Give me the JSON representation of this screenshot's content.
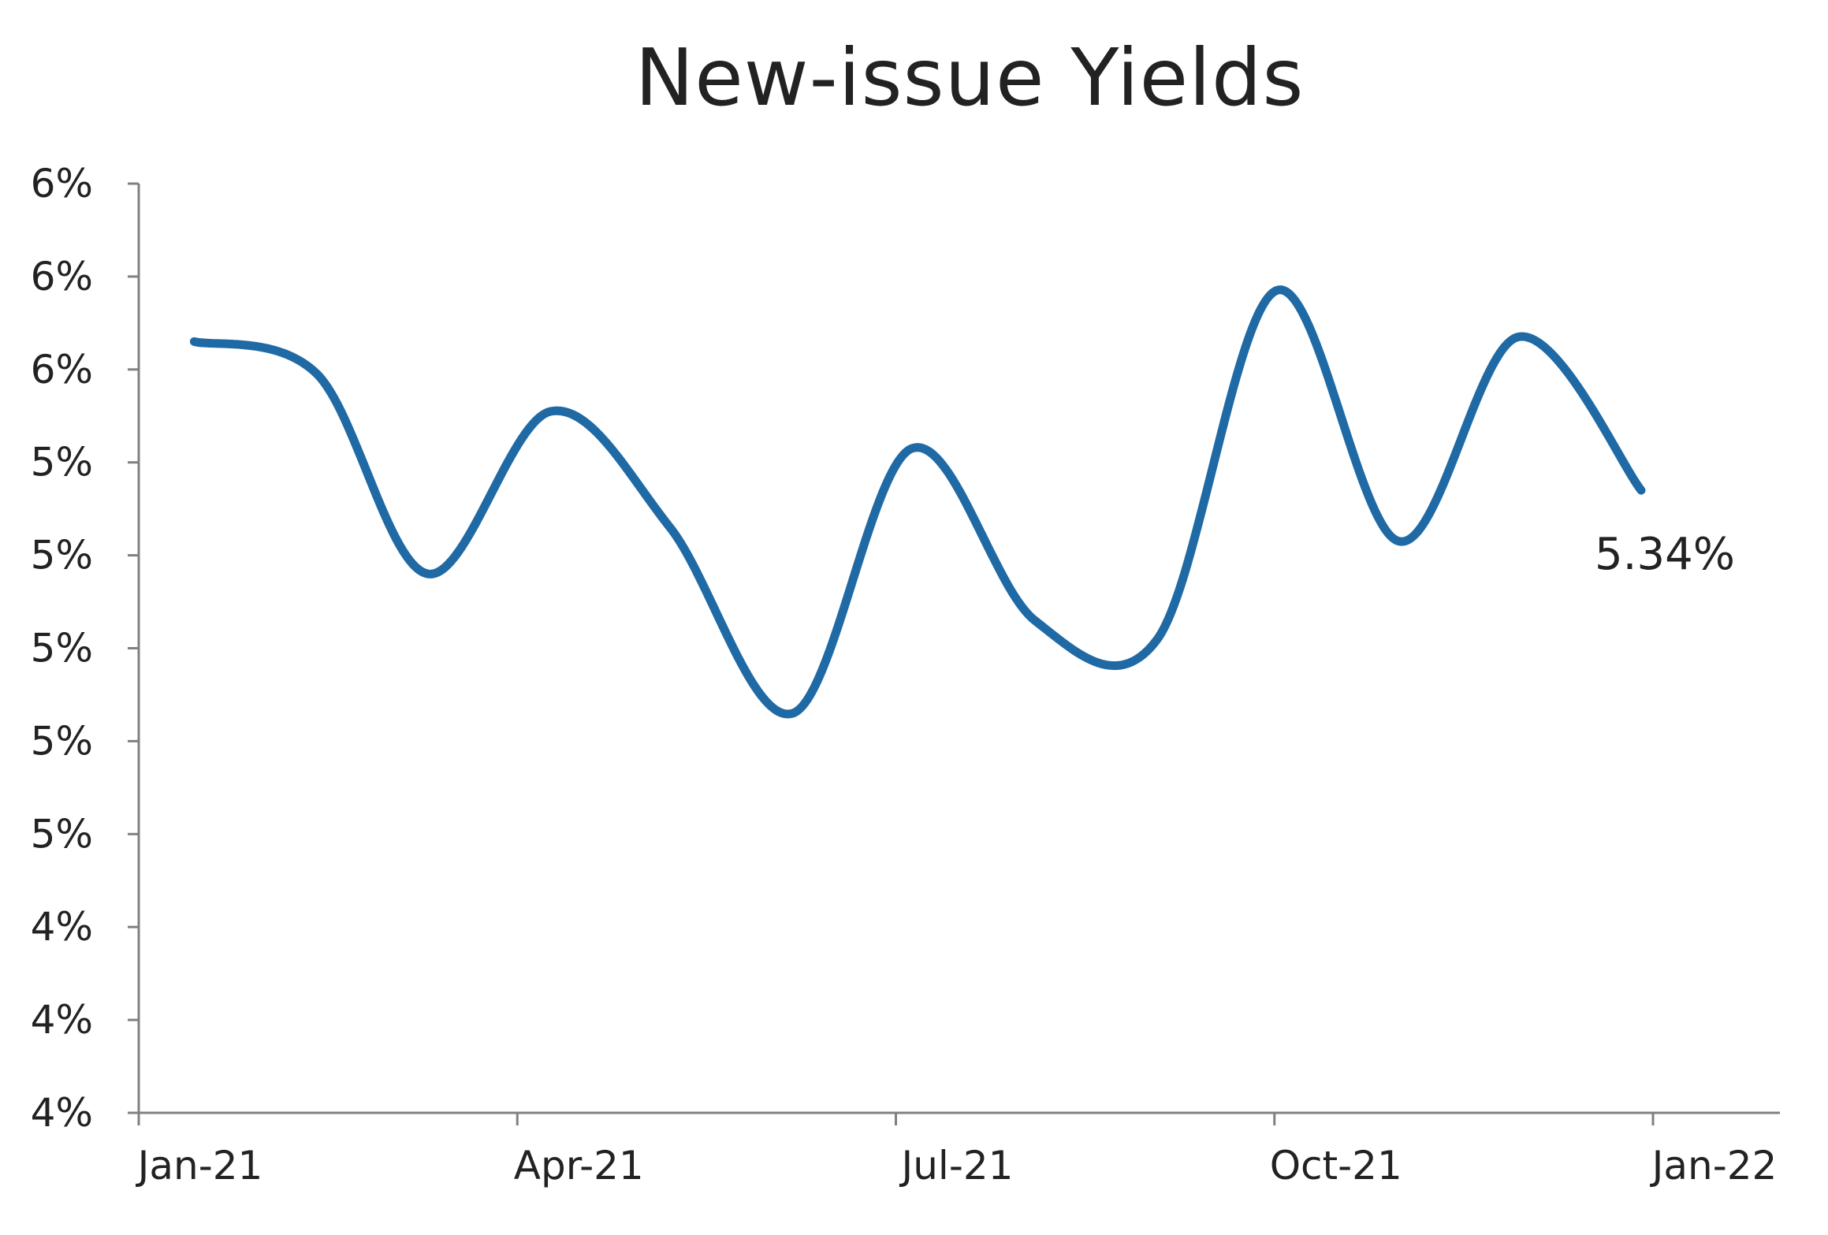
{
  "chart_data": {
    "type": "line",
    "title": "New-issue Yields",
    "xlabel": "",
    "ylabel": "",
    "x_tick_labels": [
      "Jan-21",
      "Apr-21",
      "Jul-21",
      "Oct-21",
      "Jan-22"
    ],
    "y_tick_labels": [
      "4%",
      "4%",
      "4%",
      "5%",
      "5%",
      "5%",
      "5%",
      "5%",
      "6%",
      "6%",
      "6%"
    ],
    "ylim": [
      4.0,
      6.0
    ],
    "grid": false,
    "legend": "none",
    "series": [
      {
        "color": "#1f6aa5",
        "points": [
          {
            "x": "2021-01-15",
            "y": 5.66
          },
          {
            "x": "2021-02-15",
            "y": 5.59
          },
          {
            "x": "2021-03-15",
            "y": 5.16
          },
          {
            "x": "2021-04-15",
            "y": 5.51
          },
          {
            "x": "2021-05-15",
            "y": 5.26
          },
          {
            "x": "2021-06-15",
            "y": 4.86
          },
          {
            "x": "2021-07-15",
            "y": 5.43
          },
          {
            "x": "2021-08-15",
            "y": 5.06
          },
          {
            "x": "2021-09-15",
            "y": 5.02
          },
          {
            "x": "2021-10-15",
            "y": 5.77
          },
          {
            "x": "2021-11-15",
            "y": 5.23
          },
          {
            "x": "2021-12-15",
            "y": 5.67
          },
          {
            "x": "2022-01-15",
            "y": 5.34
          }
        ],
        "end_label": "5.34%"
      }
    ]
  }
}
